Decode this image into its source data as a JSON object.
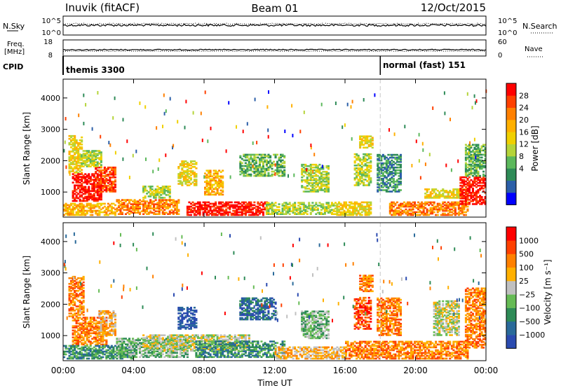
{
  "header": {
    "station": "Inuvik (fitACF)",
    "beam": "Beam 01",
    "date": "12/Oct/2015"
  },
  "strips": {
    "nsky": {
      "label": "N.Sky",
      "ticks": [
        "10^5",
        "10^0"
      ]
    },
    "nsearch": {
      "label": "N.Search",
      "ticks": [
        "10^5",
        "10^0"
      ]
    },
    "freq": {
      "label_line1": "Freq.",
      "label_line2": "[MHz]",
      "ticks": [
        "18",
        "8"
      ]
    },
    "nave": {
      "label": "Nave",
      "ticks": [
        "60",
        "0"
      ]
    },
    "cpid": {
      "label": "CPID",
      "segments": [
        "themis 3300",
        "normal (fast) 151"
      ],
      "switch_hour": 18.0
    }
  },
  "colors": {
    "power": [
      "#0000ff",
      "#2b5fa8",
      "#2e8b57",
      "#5cb85c",
      "#b5d43a",
      "#f0d000",
      "#ffb000",
      "#ff8000",
      "#ff4000",
      "#ff0000"
    ],
    "velocity": [
      "#2b4bb0",
      "#2a6a9a",
      "#2e8b57",
      "#66bb55",
      "#c0c0c0",
      "#ffb000",
      "#ff8000",
      "#ff4000",
      "#ff0000"
    ]
  },
  "chart_data": [
    {
      "type": "heatmap",
      "name": "power",
      "ylabel": "Slant Range [km]",
      "ylim": [
        200,
        4600
      ],
      "yticks": [
        "1000",
        "2000",
        "3000",
        "4000"
      ],
      "colorbar_label": "Power [dB]",
      "colorbar_ticks": [
        "28",
        "24",
        "20",
        "16",
        "12",
        "8",
        "4"
      ],
      "x_hours": [
        0,
        4,
        8,
        12,
        16,
        20,
        24
      ],
      "xtick_labels": [
        "00:00",
        "04:00",
        "08:00",
        "12:00",
        "16:00",
        "20:00",
        "00:00"
      ],
      "regions": [
        {
          "t0": 0.3,
          "t1": 1.0,
          "r0": 1600,
          "r1": 2800,
          "lvl": 5
        },
        {
          "t0": 0.5,
          "t1": 2.2,
          "r0": 700,
          "r1": 1600,
          "lvl": 9
        },
        {
          "t0": 1.8,
          "t1": 3.0,
          "r0": 1000,
          "r1": 1800,
          "lvl": 8
        },
        {
          "t0": 1.0,
          "t1": 2.2,
          "r0": 1800,
          "r1": 2300,
          "lvl": 4
        },
        {
          "t0": 0.0,
          "t1": 3.0,
          "r0": 250,
          "r1": 650,
          "lvl": 6
        },
        {
          "t0": 3.0,
          "t1": 6.5,
          "r0": 280,
          "r1": 750,
          "lvl": 7
        },
        {
          "t0": 4.5,
          "t1": 6.0,
          "r0": 800,
          "r1": 1200,
          "lvl": 4
        },
        {
          "t0": 6.5,
          "t1": 7.5,
          "r0": 1200,
          "r1": 2000,
          "lvl": 5
        },
        {
          "t0": 7.0,
          "t1": 11.5,
          "r0": 250,
          "r1": 700,
          "lvl": 9
        },
        {
          "t0": 8.0,
          "t1": 9.0,
          "r0": 900,
          "r1": 1700,
          "lvl": 6
        },
        {
          "t0": 10.0,
          "t1": 12.5,
          "r0": 1500,
          "r1": 2200,
          "lvl": 3
        },
        {
          "t0": 11.5,
          "t1": 15.5,
          "r0": 280,
          "r1": 650,
          "lvl": 4
        },
        {
          "t0": 13.5,
          "t1": 15.0,
          "r0": 1000,
          "r1": 1900,
          "lvl": 4
        },
        {
          "t0": 15.5,
          "t1": 17.5,
          "r0": 250,
          "r1": 700,
          "lvl": 5
        },
        {
          "t0": 16.5,
          "t1": 17.5,
          "r0": 1200,
          "r1": 2200,
          "lvl": 4
        },
        {
          "t0": 16.8,
          "t1": 17.6,
          "r0": 2400,
          "r1": 2800,
          "lvl": 5
        },
        {
          "t0": 17.8,
          "t1": 19.2,
          "r0": 1000,
          "r1": 2200,
          "lvl": 2
        },
        {
          "t0": 18.5,
          "t1": 23.0,
          "r0": 250,
          "r1": 700,
          "lvl": 7
        },
        {
          "t0": 20.5,
          "t1": 23.0,
          "r0": 800,
          "r1": 1100,
          "lvl": 5
        },
        {
          "t0": 22.5,
          "t1": 24.0,
          "r0": 600,
          "r1": 1500,
          "lvl": 9
        },
        {
          "t0": 22.8,
          "t1": 24.0,
          "r0": 1500,
          "r1": 2500,
          "lvl": 3
        }
      ]
    },
    {
      "type": "heatmap",
      "name": "velocity",
      "ylabel": "Slant Range [km]",
      "ylim": [
        200,
        4600
      ],
      "yticks": [
        "1000",
        "2000",
        "3000",
        "4000"
      ],
      "colorbar_label": "Velocity [m s⁻¹]",
      "colorbar_ticks": [
        "1000",
        "500",
        "100",
        "25",
        "−25",
        "−100",
        "−500",
        "−1000"
      ],
      "x_hours": [
        0,
        4,
        8,
        12,
        16,
        20,
        24
      ],
      "xtick_labels": [
        "00:00",
        "04:00",
        "08:00",
        "12:00",
        "16:00",
        "20:00",
        "00:00"
      ],
      "xlabel": "Time UT",
      "regions": [
        {
          "t0": 0.3,
          "t1": 1.2,
          "r0": 1600,
          "r1": 2900,
          "lvl": 6
        },
        {
          "t0": 0.5,
          "t1": 2.5,
          "r0": 700,
          "r1": 1600,
          "lvl": 6
        },
        {
          "t0": 2.0,
          "t1": 3.0,
          "r0": 1000,
          "r1": 1800,
          "lvl": 5
        },
        {
          "t0": 0.0,
          "t1": 4.0,
          "r0": 250,
          "r1": 700,
          "lvl": 2
        },
        {
          "t0": 3.0,
          "t1": 7.0,
          "r0": 300,
          "r1": 900,
          "lvl": 3
        },
        {
          "t0": 4.5,
          "t1": 10.5,
          "r0": 500,
          "r1": 1000,
          "lvl": 4
        },
        {
          "t0": 6.5,
          "t1": 7.5,
          "r0": 1200,
          "r1": 1900,
          "lvl": 0
        },
        {
          "t0": 7.5,
          "t1": 12.5,
          "r0": 300,
          "r1": 800,
          "lvl": 2
        },
        {
          "t0": 10.0,
          "t1": 12.0,
          "r0": 1500,
          "r1": 2200,
          "lvl": 1
        },
        {
          "t0": 12.0,
          "t1": 16.0,
          "r0": 250,
          "r1": 650,
          "lvl": 5
        },
        {
          "t0": 13.5,
          "t1": 15.0,
          "r0": 900,
          "r1": 1800,
          "lvl": 3
        },
        {
          "t0": 16.0,
          "t1": 18.5,
          "r0": 250,
          "r1": 800,
          "lvl": 6
        },
        {
          "t0": 16.5,
          "t1": 17.5,
          "r0": 1200,
          "r1": 2200,
          "lvl": 7
        },
        {
          "t0": 16.8,
          "t1": 17.6,
          "r0": 2400,
          "r1": 2900,
          "lvl": 6
        },
        {
          "t0": 17.8,
          "t1": 19.2,
          "r0": 1000,
          "r1": 2200,
          "lvl": 6
        },
        {
          "t0": 18.5,
          "t1": 23.0,
          "r0": 250,
          "r1": 800,
          "lvl": 6
        },
        {
          "t0": 21.0,
          "t1": 22.5,
          "r0": 1000,
          "r1": 2100,
          "lvl": 4
        },
        {
          "t0": 22.8,
          "t1": 24.0,
          "r0": 600,
          "r1": 2500,
          "lvl": 6
        }
      ]
    }
  ]
}
